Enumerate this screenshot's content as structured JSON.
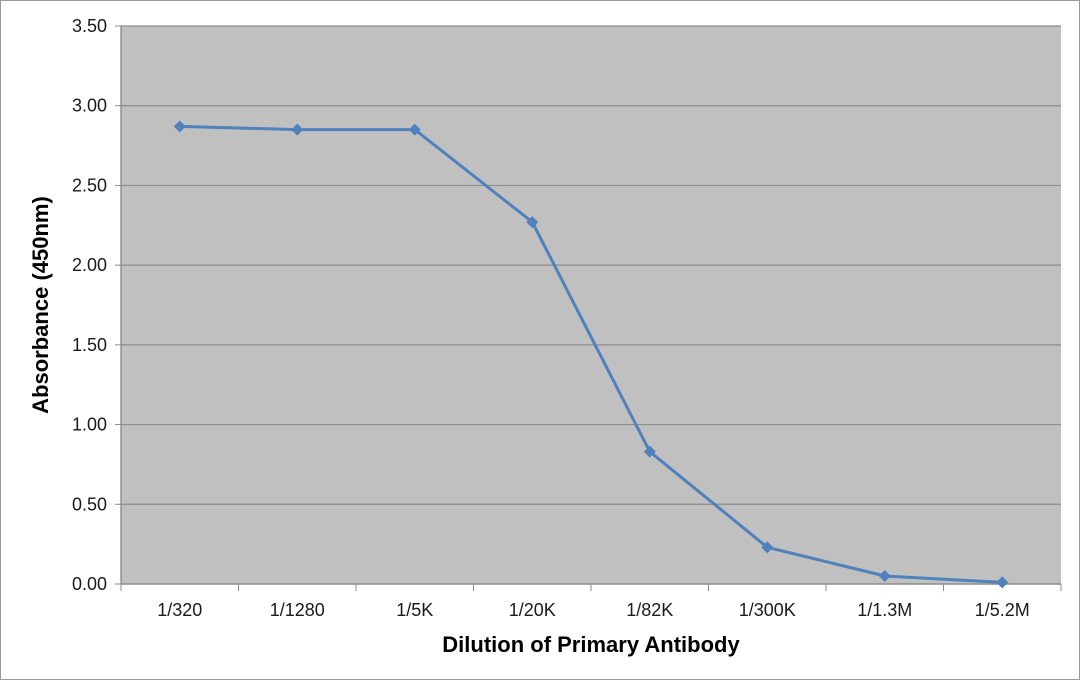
{
  "chart_data": {
    "type": "line",
    "title": "",
    "xlabel": "Dilution of Primary Antibody",
    "ylabel": "Absorbance (450nm)",
    "categories": [
      "1/320",
      "1/1280",
      "1/5K",
      "1/20K",
      "1/82K",
      "1/300K",
      "1/1.3M",
      "1/5.2M"
    ],
    "series": [
      {
        "values": [
          2.87,
          2.85,
          2.85,
          2.27,
          0.83,
          0.23,
          0.05,
          0.01
        ]
      }
    ],
    "ylim": [
      0,
      3.5
    ],
    "yticks": [
      "0.00",
      "0.50",
      "1.00",
      "1.50",
      "2.00",
      "2.50",
      "3.00",
      "3.50"
    ],
    "grid": true,
    "legend": "none",
    "colors": {
      "line": "#4f81bd",
      "plot_background": "#c0c0c0",
      "gridline": "#8c8c8c"
    }
  }
}
